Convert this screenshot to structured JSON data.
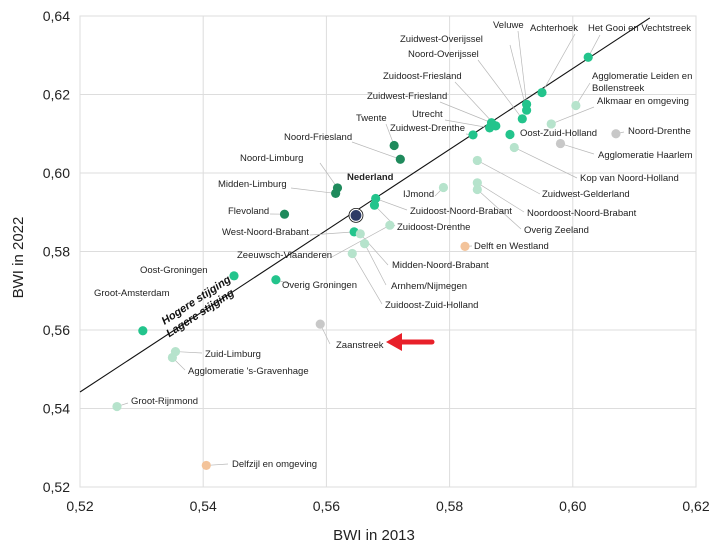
{
  "colors": {
    "dark_green": "#1f8a5c",
    "green": "#23c48c",
    "light_green": "#b6e3cc",
    "gray": "#c8c8c8",
    "orange": "#f3c39a",
    "navy": "#2e3b66",
    "arrow": "#e8202a",
    "grid": "#dddddd",
    "line": "#111111"
  },
  "chart_data": {
    "type": "scatter",
    "title": "",
    "xlabel": "BWI in 2013",
    "ylabel": "BWI in 2022",
    "xlim": [
      0.52,
      0.62
    ],
    "ylim": [
      0.52,
      0.64
    ],
    "xticks": [
      "0,52",
      "0,54",
      "0,56",
      "0,58",
      "0,60",
      "0,62"
    ],
    "yticks": [
      "0,52",
      "0,54",
      "0,56",
      "0,58",
      "0,60",
      "0,62",
      "0,64"
    ],
    "grid": true,
    "reference_line": {
      "label_above": "Hogere stijging",
      "label_below": "Lagere stijging"
    },
    "annotation": {
      "type": "arrow",
      "points_to": "Zaanstreek"
    },
    "points": [
      {
        "name": "Het Gooi en Vechtstreek",
        "x": 0.6025,
        "y": 0.6295,
        "color": "green"
      },
      {
        "name": "Achterhoek",
        "x": 0.595,
        "y": 0.6205,
        "color": "green"
      },
      {
        "name": "Veluwe",
        "x": 0.5925,
        "y": 0.6175,
        "color": "green"
      },
      {
        "name": "Zuidwest-Overijssel",
        "x": 0.5925,
        "y": 0.616,
        "color": "green"
      },
      {
        "name": "Noord-Overijssel",
        "x": 0.5918,
        "y": 0.6138,
        "color": "green"
      },
      {
        "name": "Zuidoost-Friesland",
        "x": 0.5875,
        "y": 0.612,
        "color": "green"
      },
      {
        "name": "Zuidwest-Friesland",
        "x": 0.5868,
        "y": 0.6128,
        "color": "green"
      },
      {
        "name": "Utrecht",
        "x": 0.5865,
        "y": 0.6115,
        "color": "green"
      },
      {
        "name": "Zuidwest-Drenthe",
        "x": 0.5838,
        "y": 0.6097,
        "color": "green"
      },
      {
        "name": "Oost-Zuid-Holland",
        "x": 0.5898,
        "y": 0.6098,
        "color": "green"
      },
      {
        "name": "Agglomeratie Leiden en Bollenstreek",
        "x": 0.6005,
        "y": 0.6172,
        "color": "light_green"
      },
      {
        "name": "Alkmaar en omgeving",
        "x": 0.5965,
        "y": 0.6125,
        "color": "light_green"
      },
      {
        "name": "Noord-Drenthe",
        "x": 0.607,
        "y": 0.61,
        "color": "gray"
      },
      {
        "name": "Agglomeratie Haarlem",
        "x": 0.598,
        "y": 0.6075,
        "color": "gray"
      },
      {
        "name": "Kop van Noord-Holland",
        "x": 0.5905,
        "y": 0.6065,
        "color": "light_green"
      },
      {
        "name": "Zuidwest-Gelderland",
        "x": 0.5845,
        "y": 0.6032,
        "color": "light_green"
      },
      {
        "name": "Noordoost-Noord-Brabant",
        "x": 0.5845,
        "y": 0.5975,
        "color": "light_green"
      },
      {
        "name": "Overig Zeeland",
        "x": 0.5845,
        "y": 0.5958,
        "color": "light_green"
      },
      {
        "name": "IJmond",
        "x": 0.579,
        "y": 0.5963,
        "color": "light_green"
      },
      {
        "name": "Twente",
        "x": 0.571,
        "y": 0.607,
        "color": "dark_green"
      },
      {
        "name": "Noord-Friesland",
        "x": 0.572,
        "y": 0.6035,
        "color": "dark_green"
      },
      {
        "name": "Noord-Limburg",
        "x": 0.5618,
        "y": 0.5962,
        "color": "dark_green"
      },
      {
        "name": "Midden-Limburg",
        "x": 0.5615,
        "y": 0.5948,
        "color": "dark_green"
      },
      {
        "name": "Nederland",
        "x": 0.5648,
        "y": 0.5892,
        "color": "navy",
        "bold": true
      },
      {
        "name": "Zuidoost-Noord-Brabant",
        "x": 0.568,
        "y": 0.5935,
        "color": "green"
      },
      {
        "name": "Zuidoost-Drenthe",
        "x": 0.5678,
        "y": 0.5918,
        "color": "green"
      },
      {
        "name": "Flevoland",
        "x": 0.5532,
        "y": 0.5895,
        "color": "dark_green"
      },
      {
        "name": "West-Noord-Brabant",
        "x": 0.5645,
        "y": 0.585,
        "color": "green"
      },
      {
        "name": "Zeeuwsch-Vlaanderen",
        "x": 0.5703,
        "y": 0.5867,
        "color": "light_green"
      },
      {
        "name": "Delft en Westland",
        "x": 0.5825,
        "y": 0.5813,
        "color": "orange"
      },
      {
        "name": "Midden-Noord-Brabant",
        "x": 0.5655,
        "y": 0.5845,
        "color": "light_green"
      },
      {
        "name": "Arnhem/Nijmegen",
        "x": 0.5662,
        "y": 0.582,
        "color": "light_green"
      },
      {
        "name": "Zuidoost-Zuid-Holland",
        "x": 0.5642,
        "y": 0.5795,
        "color": "light_green"
      },
      {
        "name": "Oost-Groningen",
        "x": 0.545,
        "y": 0.5738,
        "color": "green"
      },
      {
        "name": "Overig Groningen",
        "x": 0.5518,
        "y": 0.5728,
        "color": "green"
      },
      {
        "name": "Groot-Amsterdam",
        "x": 0.5302,
        "y": 0.5598,
        "color": "green"
      },
      {
        "name": "Zaanstreek",
        "x": 0.559,
        "y": 0.5615,
        "color": "gray"
      },
      {
        "name": "Zuid-Limburg",
        "x": 0.5355,
        "y": 0.5545,
        "color": "light_green"
      },
      {
        "name": "Agglomeratie 's-Gravenhage",
        "x": 0.535,
        "y": 0.553,
        "color": "light_green"
      },
      {
        "name": "Groot-Rijnmond",
        "x": 0.526,
        "y": 0.5405,
        "color": "light_green"
      },
      {
        "name": "Delfzijl en omgeving",
        "x": 0.5405,
        "y": 0.5255,
        "color": "orange"
      }
    ]
  }
}
